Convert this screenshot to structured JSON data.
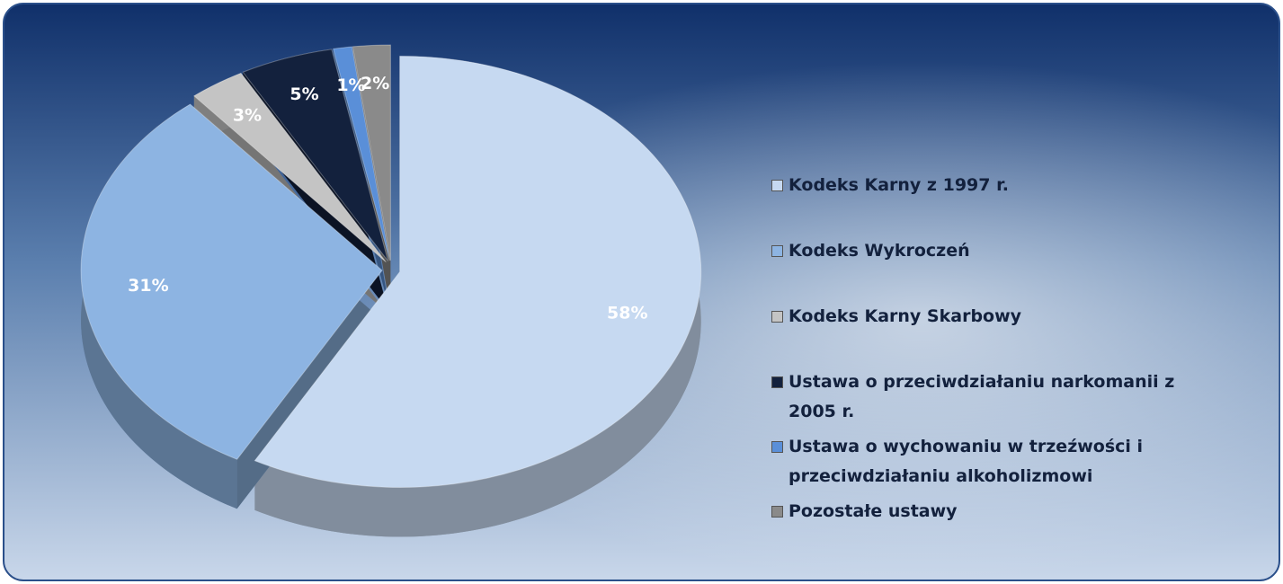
{
  "chart_data": {
    "type": "pie",
    "categories": [
      "Kodeks Karny z 1997 r.",
      "Kodeks Wykroczeń",
      "Kodeks Karny Skarbowy",
      "Ustawa o przeciwdziałaniu narkomanii z 2005 r.",
      "Ustawa o wychowaniu w trzeźwości i przeciwdziałaniu alkoholizmowi",
      "Pozostałe ustawy"
    ],
    "values": [
      58,
      31,
      3,
      5,
      1,
      2
    ],
    "value_labels": [
      "58%",
      "31%",
      "3%",
      "5%",
      "1%",
      "2%"
    ],
    "colors": [
      "#c6d9f1",
      "#8db4e2",
      "#c4c4c4",
      "#13213d",
      "#5a8fd8",
      "#8a8a8a"
    ],
    "legend": "right"
  }
}
